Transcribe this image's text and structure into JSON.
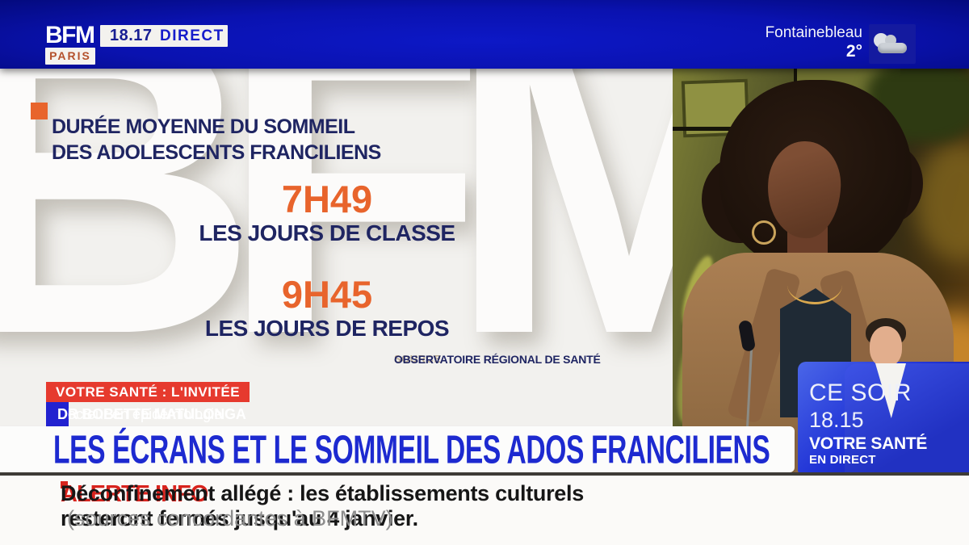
{
  "header": {
    "channel": "BFM",
    "region": "PARIS",
    "time": "18.17",
    "live_label": "DIRECT",
    "weather": {
      "city": "Fontainebleau",
      "temperature": "2°",
      "icon": "cloud-icon"
    }
  },
  "infographic": {
    "watermark": "BFM",
    "title_line1": "DURÉE MOYENNE DU SOMMEIL",
    "title_line2": "DES ADOLESCENTS FRANCILIENS",
    "stats": [
      {
        "value": "7H49",
        "label": "LES JOURS DE CLASSE"
      },
      {
        "value": "9H45",
        "label": "LES JOURS DE REPOS"
      }
    ],
    "source_prefix": "SOURCE",
    "source_name": "OBSERVATOIRE RÉGIONAL DE SANTÉ"
  },
  "banners": {
    "kicker": "VOTRE SANTÉ : L'INVITÉE",
    "guest_name": "DR BOBETTE MATULONGA",
    "guest_title": "Docteur en épidémiologie",
    "headline": "LES ÉCRANS ET LE SOMMEIL DES ADOS FRANCILIENS"
  },
  "promo": {
    "when": "CE SOIR",
    "time": "18.15",
    "show": "VOTRE SANTÉ",
    "mode": "EN DIRECT"
  },
  "ticker": {
    "alert_label": "ALERTE INFO",
    "text_line1": "Déconfinement allégé : les établissements culturels",
    "text_line2": "resteront fermés jusqu'au 4 janvier.",
    "text_source": "(sources concordantes à BFMTV)"
  },
  "colors": {
    "topbar_blue": "#0a12b0",
    "headline_blue": "#1d2ad0",
    "navy_text": "#1f2562",
    "accent_orange": "#e8642c",
    "kicker_red": "#e63a2e",
    "guest_banner_blue": "#2222d0",
    "alert_red": "#d8231d"
  }
}
